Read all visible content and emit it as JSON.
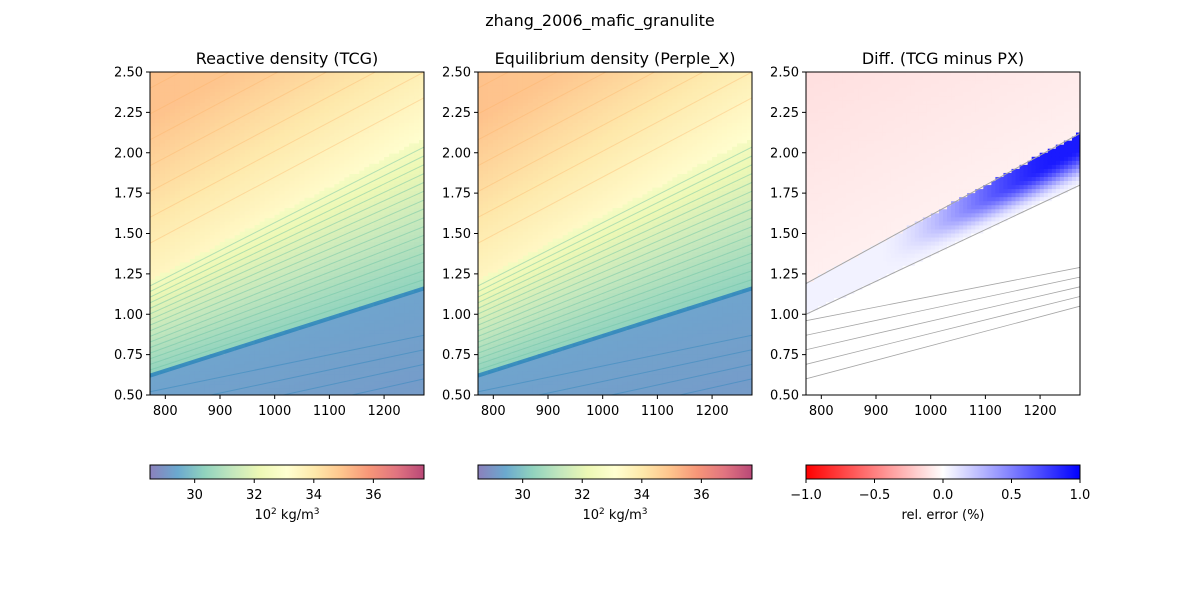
{
  "figure": {
    "title": "zhang_2006_mafic_granulite"
  },
  "colors": {
    "spectral": [
      "#5e4fa2",
      "#3288bd",
      "#66c2a5",
      "#abdda4",
      "#e6f598",
      "#ffffbf",
      "#fee08b",
      "#fdae61",
      "#f46d43",
      "#d53e4f",
      "#9e0142"
    ],
    "diverging": [
      "#ff0000",
      "#ffffff",
      "#0000ff"
    ],
    "contour_line": "#a6a6a6"
  },
  "chart_data": [
    {
      "type": "heatmap",
      "title": "Reactive density (TCG)",
      "xlim": [
        772,
        1273
      ],
      "ylim": [
        0.5,
        2.5
      ],
      "xticks": [
        "800",
        "900",
        "1000",
        "1100",
        "1200"
      ],
      "yticks": [
        "0.50",
        "0.75",
        "1.00",
        "1.25",
        "1.50",
        "1.75",
        "2.00",
        "2.25",
        "2.50"
      ],
      "colormap": "Spectral_r",
      "clim": [
        28.5,
        37.7
      ],
      "colorbar": {
        "ticks": [
          "30",
          "32",
          "34",
          "36"
        ],
        "label_base": "10",
        "label_exp": "2",
        "label_unit": " kg/m",
        "label_unit_exp": "3"
      },
      "field": {
        "upper_boundary": [
          [
            772,
            1.21
          ],
          [
            1273,
            2.09
          ]
        ],
        "lower_boundary": [
          [
            772,
            0.62
          ],
          [
            1273,
            1.16
          ]
        ],
        "density_at_low_P": 29.3,
        "density_high_P_zone": [
          33.5,
          35.0
        ],
        "density_transition_zone": [
          30.3,
          32.6
        ]
      }
    },
    {
      "type": "heatmap",
      "title": "Equilibrium density (Perple_X)",
      "xlim": [
        772,
        1273
      ],
      "ylim": [
        0.5,
        2.5
      ],
      "xticks": [
        "800",
        "900",
        "1000",
        "1100",
        "1200"
      ],
      "yticks": [
        "0.50",
        "0.75",
        "1.00",
        "1.25",
        "1.50",
        "1.75",
        "2.00",
        "2.25",
        "2.50"
      ],
      "colormap": "Spectral_r",
      "clim": [
        28.5,
        37.7
      ],
      "colorbar": {
        "ticks": [
          "30",
          "32",
          "34",
          "36"
        ],
        "label_base": "10",
        "label_exp": "2",
        "label_unit": " kg/m",
        "label_unit_exp": "3"
      },
      "field": {
        "upper_boundary": [
          [
            772,
            1.21
          ],
          [
            1273,
            2.09
          ]
        ],
        "lower_boundary": [
          [
            772,
            0.62
          ],
          [
            1273,
            1.16
          ]
        ],
        "density_at_low_P": 29.3,
        "density_high_P_zone": [
          33.5,
          35.0
        ],
        "density_transition_zone": [
          30.3,
          32.6
        ]
      }
    },
    {
      "type": "heatmap",
      "title": "Diff. (TCG minus PX)",
      "xlim": [
        772,
        1273
      ],
      "ylim": [
        0.5,
        2.5
      ],
      "xticks": [
        "800",
        "900",
        "1000",
        "1100",
        "1200"
      ],
      "yticks": [
        "0.50",
        "0.75",
        "1.00",
        "1.25",
        "1.50",
        "1.75",
        "2.00",
        "2.25",
        "2.50"
      ],
      "colormap": "bwr_r",
      "clim": [
        -1.0,
        1.0
      ],
      "colorbar": {
        "ticks": [
          "−1.0",
          "−0.5",
          "0.0",
          "0.5",
          "1.0"
        ],
        "label": "rel. error (%)"
      },
      "field": {
        "positive_band_upper": [
          [
            772,
            1.19
          ],
          [
            1273,
            2.12
          ]
        ],
        "positive_band_lower": [
          [
            772,
            1.0
          ],
          [
            1273,
            1.8
          ]
        ],
        "positive_band_max": 0.85,
        "upper_region_value": -0.06
      }
    }
  ]
}
